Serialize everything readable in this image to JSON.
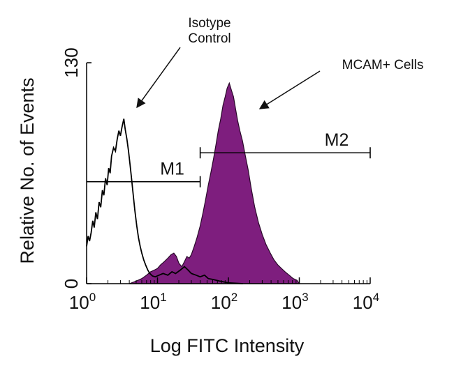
{
  "chart_data": {
    "type": "histogram-overlay",
    "title": "",
    "xlabel": "Log FITC Intensity",
    "ylabel": "Relative No. of Events",
    "xscale": "log",
    "xlim": [
      1,
      10000
    ],
    "ylim": [
      0,
      130
    ],
    "x_ticks": [
      {
        "value": 1,
        "base": "10",
        "exp": "0"
      },
      {
        "value": 10,
        "base": "10",
        "exp": "1"
      },
      {
        "value": 100,
        "base": "10",
        "exp": "2"
      },
      {
        "value": 1000,
        "base": "10",
        "exp": "3"
      },
      {
        "value": 10000,
        "base": "10",
        "exp": "4"
      }
    ],
    "y_ticks": [
      {
        "value": 0,
        "label": "0"
      },
      {
        "value": 130,
        "label": "130"
      }
    ],
    "series": [
      {
        "name": "Isotype Control",
        "style": "outline",
        "color": "#000000",
        "points": [
          [
            1.0,
            22
          ],
          [
            1.05,
            28
          ],
          [
            1.1,
            25
          ],
          [
            1.16,
            30
          ],
          [
            1.22,
            37
          ],
          [
            1.28,
            33
          ],
          [
            1.35,
            42
          ],
          [
            1.42,
            38
          ],
          [
            1.5,
            48
          ],
          [
            1.58,
            45
          ],
          [
            1.67,
            55
          ],
          [
            1.75,
            52
          ],
          [
            1.85,
            62
          ],
          [
            1.95,
            58
          ],
          [
            2.05,
            68
          ],
          [
            2.15,
            65
          ],
          [
            2.25,
            75
          ],
          [
            2.4,
            80
          ],
          [
            2.55,
            78
          ],
          [
            2.7,
            85
          ],
          [
            2.85,
            90
          ],
          [
            3.0,
            87
          ],
          [
            3.15,
            92
          ],
          [
            3.35,
            97
          ],
          [
            3.5,
            91
          ],
          [
            3.7,
            85
          ],
          [
            3.9,
            78
          ],
          [
            4.1,
            70
          ],
          [
            4.3,
            62
          ],
          [
            4.55,
            52
          ],
          [
            4.8,
            43
          ],
          [
            5.1,
            34
          ],
          [
            5.4,
            27
          ],
          [
            5.7,
            22
          ],
          [
            6.0,
            18
          ],
          [
            6.4,
            14
          ],
          [
            6.8,
            11
          ],
          [
            7.3,
            8
          ],
          [
            7.8,
            6
          ],
          [
            8.5,
            4.5
          ],
          [
            9.3,
            4
          ],
          [
            10.5,
            5
          ],
          [
            12,
            6
          ],
          [
            14,
            5
          ],
          [
            16,
            7
          ],
          [
            18,
            6
          ],
          [
            21,
            8
          ],
          [
            24,
            10
          ],
          [
            27,
            8
          ],
          [
            30,
            6
          ],
          [
            35,
            5
          ],
          [
            40,
            4
          ],
          [
            46,
            5
          ],
          [
            52,
            3
          ],
          [
            60,
            2.5
          ],
          [
            75,
            1.5
          ],
          [
            100,
            0.5
          ],
          [
            160,
            0
          ]
        ]
      },
      {
        "name": "MCAM+ Cells",
        "style": "filled",
        "color": "#7e1e7e",
        "points": [
          [
            4.0,
            0
          ],
          [
            5.0,
            1.5
          ],
          [
            6.0,
            3
          ],
          [
            7.0,
            5
          ],
          [
            8.0,
            7
          ],
          [
            9.0,
            8
          ],
          [
            10.0,
            9
          ],
          [
            11.0,
            11
          ],
          [
            12.5,
            13
          ],
          [
            14.0,
            15
          ],
          [
            15.5,
            17
          ],
          [
            17.0,
            18
          ],
          [
            18.5,
            16
          ],
          [
            20.0,
            12
          ],
          [
            22.0,
            10
          ],
          [
            24.0,
            13
          ],
          [
            26.0,
            16
          ],
          [
            28.0,
            15
          ],
          [
            30.0,
            17
          ],
          [
            33.0,
            22
          ],
          [
            36.0,
            27
          ],
          [
            40.0,
            34
          ],
          [
            44.0,
            42
          ],
          [
            48.0,
            50
          ],
          [
            52.0,
            58
          ],
          [
            57.0,
            66
          ],
          [
            62.0,
            74
          ],
          [
            67.0,
            82
          ],
          [
            72.0,
            90
          ],
          [
            78.0,
            97
          ],
          [
            84.0,
            105
          ],
          [
            90.0,
            110
          ],
          [
            96.0,
            115
          ],
          [
            103.0,
            118
          ],
          [
            110.0,
            114
          ],
          [
            118.0,
            110
          ],
          [
            126.0,
            103
          ],
          [
            135.0,
            96
          ],
          [
            145.0,
            90
          ],
          [
            158.0,
            84
          ],
          [
            172.0,
            76
          ],
          [
            190.0,
            67
          ],
          [
            210.0,
            56
          ],
          [
            235.0,
            45
          ],
          [
            265.0,
            36
          ],
          [
            300.0,
            29
          ],
          [
            340.0,
            23
          ],
          [
            390.0,
            18
          ],
          [
            440.0,
            14
          ],
          [
            500.0,
            11
          ],
          [
            560.0,
            9
          ],
          [
            630.0,
            7
          ],
          [
            720.0,
            5
          ],
          [
            820.0,
            3
          ],
          [
            930.0,
            2
          ],
          [
            1000.0,
            0
          ]
        ]
      }
    ],
    "gates": [
      {
        "label": "M1",
        "x_start": 1,
        "x_end": 40,
        "y": 60
      },
      {
        "label": "M2",
        "x_start": 40,
        "x_end": 10000,
        "y": 77
      }
    ],
    "annotations": [
      {
        "lines": [
          "Isotype",
          "Control"
        ],
        "series": "Isotype Control"
      },
      {
        "lines": [
          "MCAM+ Cells"
        ],
        "series": "MCAM+ Cells"
      }
    ]
  }
}
